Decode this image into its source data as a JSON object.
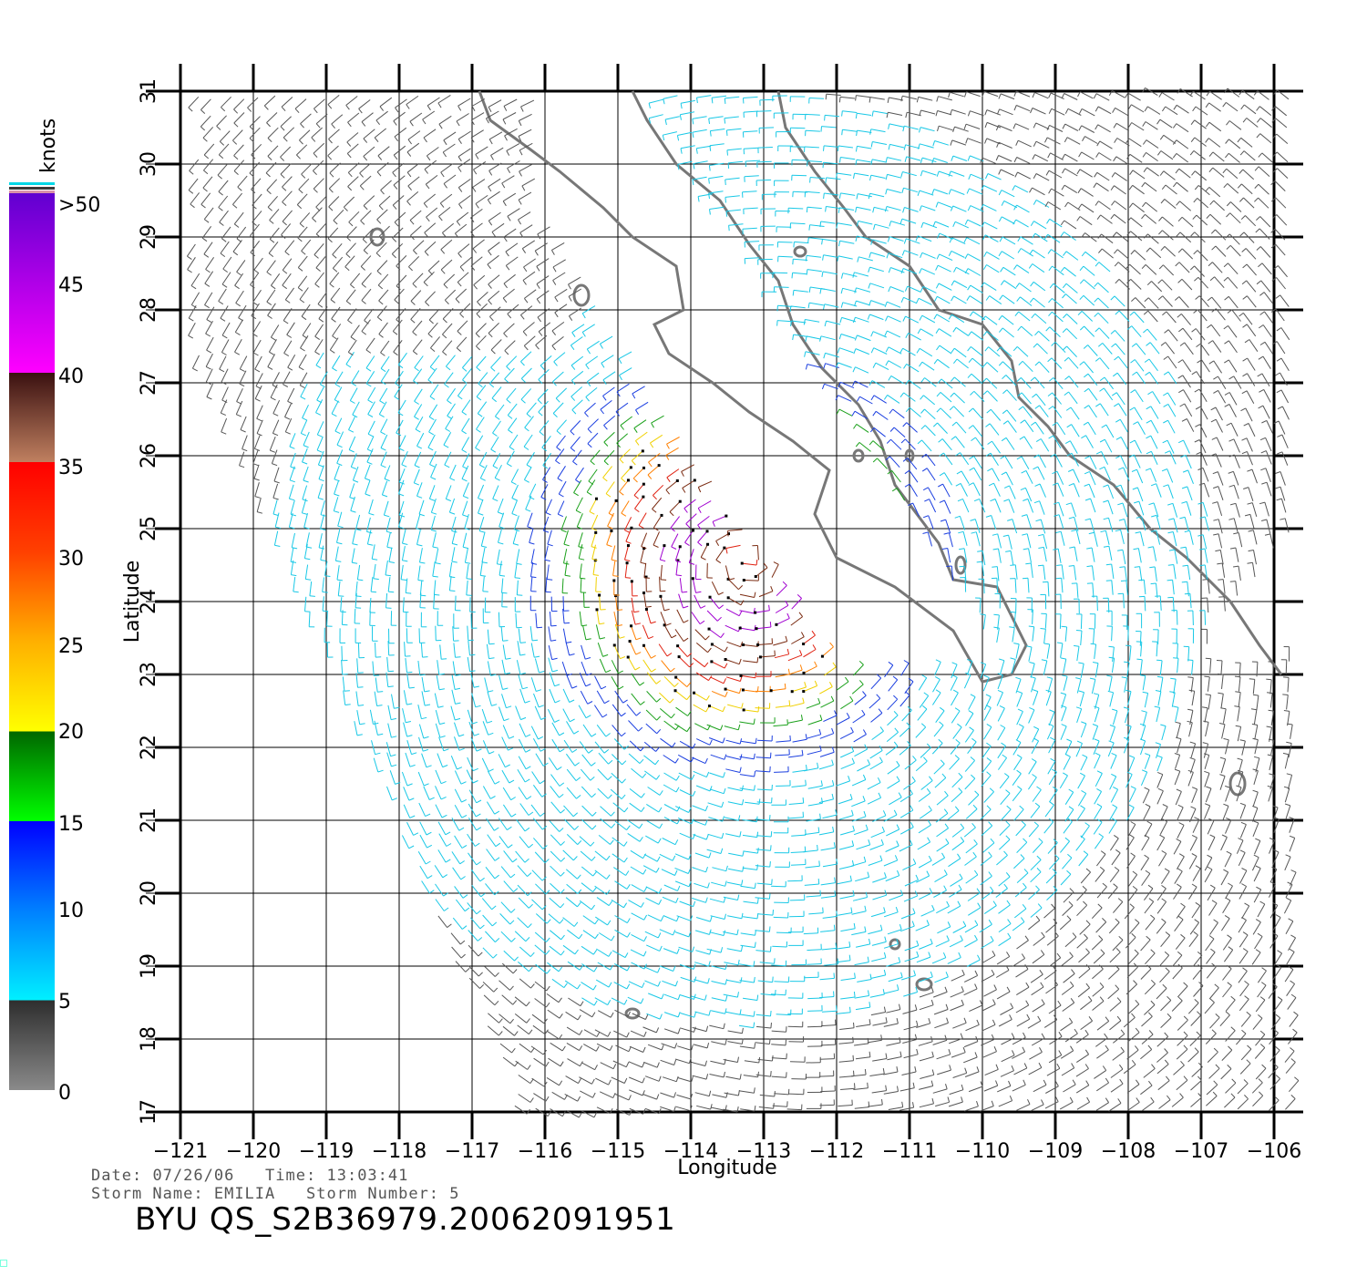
{
  "colorbar": {
    "unit_label": "knots",
    "tick_labels": [
      ">50",
      "45",
      "40",
      "35",
      "30",
      "25",
      "20",
      "15",
      "10",
      "5",
      "0"
    ],
    "stops": [
      {
        "from": 0,
        "to": 5,
        "color_top": "#333333",
        "color_bottom": "#888888"
      },
      {
        "from": 5,
        "to": 15,
        "color_top": "#0000ff",
        "color_bottom": "#00f0ff"
      },
      {
        "from": 15,
        "to": 20,
        "color_top": "#009900",
        "color_bottom": "#00ff00"
      },
      {
        "from": 20,
        "to": 30,
        "color_top": "#ff6600",
        "color_bottom": "#ffff00"
      },
      {
        "from": 30,
        "to": 35,
        "color_top": "#ff0000",
        "color_bottom": "#ff3300"
      },
      {
        "from": 35,
        "to": 40,
        "color_top": "#3a1a10",
        "color_bottom": "#c08060"
      },
      {
        "from": 40,
        "to": 50,
        "color_top": "#7a00ff",
        "color_bottom": "#ff00ff"
      }
    ]
  },
  "map": {
    "lon_range": [
      -121,
      -106
    ],
    "lat_range": [
      17,
      31
    ],
    "lon_ticks": [
      "−121",
      "−120",
      "−119",
      "−118",
      "−117",
      "−116",
      "−115",
      "−114",
      "−113",
      "−112",
      "−111",
      "−110",
      "−109",
      "−108",
      "−107",
      "−106"
    ],
    "lat_ticks": [
      "17",
      "18",
      "19",
      "20",
      "21",
      "22",
      "23",
      "24",
      "25",
      "26",
      "27",
      "28",
      "29",
      "30",
      "31"
    ],
    "xlabel": "Longitude",
    "ylabel": "Latitude",
    "storm_center": {
      "lon": -113.3,
      "lat": 24.6
    },
    "colors": {
      "grid": "#000000",
      "coast": "#777777"
    }
  },
  "footer": {
    "date_label": "Date:",
    "date": "07/26/06",
    "time_label": "Time:",
    "time": "13:03:41",
    "storm_name_label": "Storm Name:",
    "storm_name": "EMILIA",
    "storm_number_label": "Storm Number:",
    "storm_number": "5",
    "title": "BYU  QS_S2B36979.20062091951"
  }
}
